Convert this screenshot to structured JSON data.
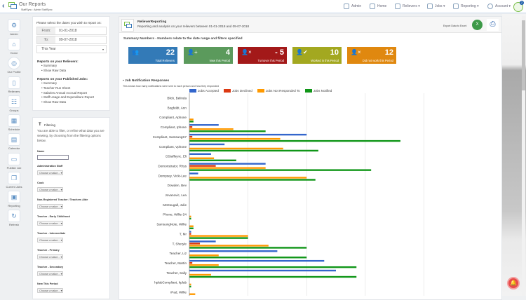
{
  "header": {
    "title": "Our Reports",
    "subtitle": "StaffSync : Admin StaffSync",
    "notification_count": "2",
    "nav": [
      {
        "label": "Admin",
        "icon": "gear-icon"
      },
      {
        "label": "Home",
        "icon": "home-icon"
      },
      {
        "label": "Relievers ▾",
        "icon": "people-icon"
      },
      {
        "label": "Jobs ▾",
        "icon": "briefcase-icon"
      },
      {
        "label": "Reporting ▾",
        "icon": "monitor-icon"
      },
      {
        "label": "Account ▾",
        "icon": "user-icon"
      }
    ]
  },
  "sidebar": {
    "items": [
      {
        "label": "Admin"
      },
      {
        "label": "Home"
      },
      {
        "label": "Our Profile"
      },
      {
        "label": "Relievers"
      },
      {
        "label": "Groups"
      },
      {
        "label": "Schedule"
      },
      {
        "label": "Calendar"
      },
      {
        "label": "Publish Job"
      },
      {
        "label": "Current Jobs"
      },
      {
        "label": "Reporting"
      },
      {
        "label": "Refresh"
      }
    ]
  },
  "dates": {
    "prompt": "Please select the dates you wish to report on:",
    "from_label": "From:",
    "from_value": "01-01-2018",
    "to_label": "To:",
    "to_value": "09-07-2018",
    "range": "This Year"
  },
  "reports": {
    "relievers_title": "Reports on your Relievers:",
    "relievers": [
      "Summary",
      "Show Raw Data"
    ],
    "jobs_title": "Reports on your Published Jobs:",
    "jobs": [
      "Summary",
      "Teacher Run Sheet",
      "Salaries Annual Accrual Report",
      "Staff Usage and Expenditure Report",
      "Show Raw Data"
    ]
  },
  "filtering": {
    "title": "Filtering",
    "description": "You are able to filter, or refine what data you are viewing, by choosing from the filtering options below.",
    "name_label": "Name",
    "name_value": "",
    "placeholder": "Choose a value... ▾",
    "filters": [
      "Administration Staff",
      "Cook",
      "Non-Registered Teacher / Teachers Aide",
      "Teacher - Early Childhood",
      "Teacher - Intermediate",
      "Teacher - Primary",
      "Teacher - Secondary",
      "New This Period"
    ]
  },
  "main": {
    "title": "RelieverReporting",
    "subtitle": "Reporting and analysis on your relievers between 01-01-2018 and 09-07-2018",
    "export_label": "Export Data to Excel:",
    "summary_title": "Summary Numbers - Numbers relate to the date range and filters specified",
    "cards": [
      {
        "value": "22",
        "label": "Total Relievers",
        "color": "#337ab7",
        "icon": "group-icon"
      },
      {
        "value": "4",
        "label": "New this Period",
        "color": "#5b9a5c",
        "icon": "user-plus-icon"
      },
      {
        "value": "- 5",
        "label": "Turnover this Period",
        "color": "#a31919",
        "icon": "user-x-icon"
      },
      {
        "value": "10",
        "label": "Worked in this Period",
        "color": "#a3a820",
        "icon": "user-check-icon"
      },
      {
        "value": "12",
        "label": "Did not work this Period",
        "color": "#e0880f",
        "icon": "user-x-icon"
      }
    ]
  },
  "chart_data": {
    "type": "bar",
    "orientation": "horizontal",
    "title": "Job Notification Responses",
    "subtitle": "This shows how many notifications were sent to each person and how they responded",
    "legend": "top",
    "grid": true,
    "categories": [
      "Blick, Belinda",
      "Bogfeldt, Ann",
      "Compliant, Aphone",
      "Compliant, Iphone",
      "Compliant, SamsungS7",
      "Compliant, Vphone",
      "DStaffsync, Eli",
      "Demonstrator, Rhys",
      "Dempsey, Vicki-Lee",
      "Dowden, Bev",
      "Jovanovic, Lea",
      "McDougall, Julie",
      "Phone, Willie S4",
      "SamsungNote, Willie",
      "T, Mr",
      "T, Sheryle",
      "Teacher, Liz",
      "Teacher, Martin",
      "Teacher, Sally",
      "hplabCompliant, hplab",
      "iPad, Willie"
    ],
    "series": [
      {
        "name": "Jobs Accepted",
        "color": "#3366cc",
        "values": [
          0,
          0,
          0,
          5,
          20,
          6,
          3.7,
          13,
          1.5,
          0,
          0,
          0,
          0,
          0,
          0.3,
          4.5,
          15,
          23,
          25,
          0,
          0
        ]
      },
      {
        "name": "Jobs Declined",
        "color": "#dc3912",
        "values": [
          0,
          0,
          0,
          0.5,
          0.5,
          0,
          0,
          4.5,
          0,
          0,
          0,
          0,
          0,
          0,
          0.3,
          1.8,
          0,
          0.5,
          0,
          0,
          0
        ]
      },
      {
        "name": "Jobs Not Responded To",
        "color": "#ff9900",
        "values": [
          0,
          0,
          0.7,
          7.5,
          15.5,
          16,
          4.2,
          13,
          20,
          0,
          0,
          0,
          0.3,
          0.7,
          10,
          13.5,
          5,
          5,
          3.7,
          0.3,
          1
        ]
      },
      {
        "name": "Jobs Notified",
        "color": "#109618",
        "values": [
          0,
          0,
          0.7,
          13,
          36,
          22,
          8,
          31,
          21.5,
          0,
          0,
          0,
          0.3,
          0.7,
          10,
          20,
          20,
          28.5,
          28.5,
          0.3,
          0
        ]
      }
    ]
  }
}
